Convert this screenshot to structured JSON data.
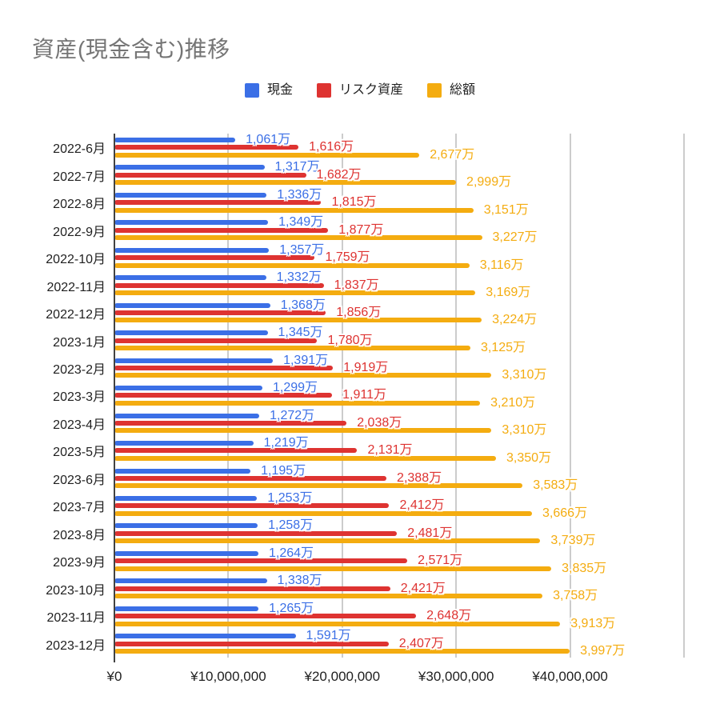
{
  "title": "資産(現金含む)推移",
  "colors": {
    "cash": "#3B6FE6",
    "risk": "#DE3331",
    "total": "#F4AC10",
    "title_text": "#757575",
    "axis_text": "#1F1F1F",
    "gridline": "#CCCCCC",
    "axis_line": "#424242",
    "background": "#FFFFFF"
  },
  "legend": {
    "items": [
      {
        "id": "cash",
        "label": "現金"
      },
      {
        "id": "risk",
        "label": "リスク資産"
      },
      {
        "id": "total",
        "label": "総額"
      }
    ]
  },
  "chart_data": {
    "type": "bar",
    "orientation": "horizontal",
    "title": "資産(現金含む)推移",
    "grid": true,
    "legend_position": "top-center",
    "x_axis": {
      "ticks": [
        "¥0",
        "¥10,000,000",
        "¥20,000,000",
        "¥30,000,000",
        "¥40,000,000"
      ],
      "tick_values_yen": [
        0,
        10000000,
        20000000,
        30000000,
        40000000
      ],
      "range_yen": [
        0,
        50000000
      ]
    },
    "categories": [
      "2022-6月",
      "2022-7月",
      "2022-8月",
      "2022-9月",
      "2022-10月",
      "2022-11月",
      "2022-12月",
      "2023-1月",
      "2023-2月",
      "2023-3月",
      "2023-4月",
      "2023-5月",
      "2023-6月",
      "2023-7月",
      "2023-8月",
      "2023-9月",
      "2023-10月",
      "2023-11月",
      "2023-12月"
    ],
    "series": [
      {
        "name": "現金",
        "color_key": "cash",
        "values_man": [
          1061,
          1317,
          1336,
          1349,
          1357,
          1332,
          1368,
          1345,
          1391,
          1299,
          1272,
          1219,
          1195,
          1253,
          1258,
          1264,
          1338,
          1265,
          1591
        ],
        "labels": [
          "1,061万",
          "1,317万",
          "1,336万",
          "1,349万",
          "1,357万",
          "1,332万",
          "1,368万",
          "1,345万",
          "1,391万",
          "1,299万",
          "1,272万",
          "1,219万",
          "1,195万",
          "1,253万",
          "1,258万",
          "1,264万",
          "1,338万",
          "1,265万",
          "1,591万"
        ]
      },
      {
        "name": "リスク資産",
        "color_key": "risk",
        "values_man": [
          1616,
          1682,
          1815,
          1877,
          1759,
          1837,
          1856,
          1780,
          1919,
          1911,
          2038,
          2131,
          2388,
          2412,
          2481,
          2571,
          2421,
          2648,
          2407
        ],
        "labels": [
          "1,616万",
          "1,682万",
          "1,815万",
          "1,877万",
          "1,759万",
          "1,837万",
          "1,856万",
          "1,780万",
          "1,919万",
          "1,911万",
          "2,038万",
          "2,131万",
          "2,388万",
          "2,412万",
          "2,481万",
          "2,571万",
          "2,421万",
          "2,648万",
          "2,407万"
        ]
      },
      {
        "name": "総額",
        "color_key": "total",
        "values_man": [
          2677,
          2999,
          3151,
          3227,
          3116,
          3169,
          3224,
          3125,
          3310,
          3210,
          3310,
          3350,
          3583,
          3666,
          3739,
          3835,
          3758,
          3913,
          3997
        ],
        "labels": [
          "2,677万",
          "2,999万",
          "3,151万",
          "3,227万",
          "3,116万",
          "3,169万",
          "3,224万",
          "3,125万",
          "3,310万",
          "3,210万",
          "3,310万",
          "3,350万",
          "3,583万",
          "3,666万",
          "3,739万",
          "3,835万",
          "3,758万",
          "3,913万",
          "3,997万"
        ]
      }
    ]
  }
}
